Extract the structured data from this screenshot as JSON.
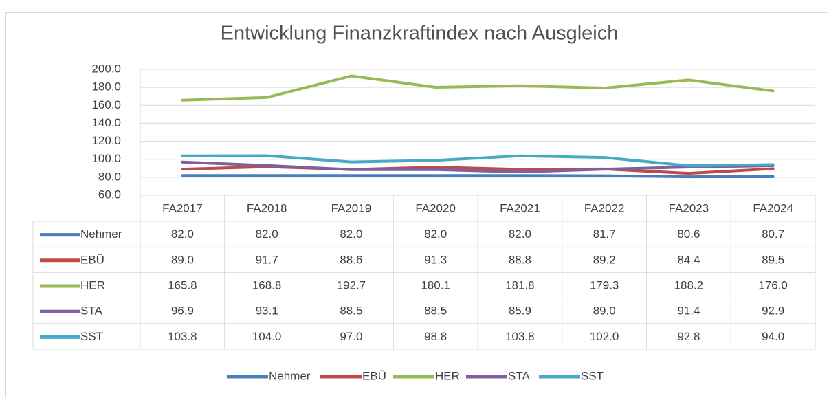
{
  "chart_data": {
    "type": "line",
    "title": "Entwicklung Finanzkraftindex nach Ausgleich",
    "categories": [
      "FA2017",
      "FA2018",
      "FA2019",
      "FA2020",
      "FA2021",
      "FA2022",
      "FA2023",
      "FA2024"
    ],
    "series": [
      {
        "name": "Nehmer",
        "color": "#4a7ebb",
        "values": [
          82,
          82,
          82,
          82,
          82,
          81.7,
          80.6,
          80.7
        ],
        "value_labels": [
          "82.0",
          "82.0",
          "82.0",
          "82.0",
          "82.0",
          "81.7",
          "80.6",
          "80.7"
        ]
      },
      {
        "name": "EBÜ",
        "color": "#be4b48",
        "values": [
          89,
          91.7,
          88.6,
          91.3,
          88.8,
          89.2,
          84.4,
          89.5
        ],
        "value_labels": [
          "89.0",
          "91.7",
          "88.6",
          "91.3",
          "88.8",
          "89.2",
          "84.4",
          "89.5"
        ]
      },
      {
        "name": "HER",
        "color": "#98b954",
        "values": [
          165.8,
          168.8,
          192.7,
          180.1,
          181.8,
          179.3,
          188.2,
          176
        ],
        "value_labels": [
          "165.8",
          "168.8",
          "192.7",
          "180.1",
          "181.8",
          "179.3",
          "188.2",
          "176.0"
        ]
      },
      {
        "name": "STA",
        "color": "#7d60a0",
        "values": [
          96.9,
          93.1,
          88.5,
          88.5,
          85.9,
          89,
          91.4,
          92.9
        ],
        "value_labels": [
          "96.9",
          "93.1",
          "88.5",
          "88.5",
          "85.9",
          "89.0",
          "91.4",
          "92.9"
        ]
      },
      {
        "name": "SST",
        "color": "#46aac5",
        "values": [
          103.8,
          104,
          97,
          98.8,
          103.8,
          102,
          92.8,
          94
        ],
        "value_labels": [
          "103.8",
          "104.0",
          "97.0",
          "98.8",
          "103.8",
          "102.0",
          "92.8",
          "94.0"
        ]
      }
    ],
    "ylim": [
      60,
      200
    ],
    "yticks": [
      {
        "value": 60,
        "label": "60.0"
      },
      {
        "value": 80,
        "label": "80.0"
      },
      {
        "value": 100,
        "label": "100.0"
      },
      {
        "value": 120,
        "label": "120.0"
      },
      {
        "value": 140,
        "label": "140.0"
      },
      {
        "value": 160,
        "label": "160.0"
      },
      {
        "value": 180,
        "label": "180.0"
      },
      {
        "value": 200,
        "label": "200.0"
      }
    ],
    "grid": true,
    "legend": "bottom"
  }
}
